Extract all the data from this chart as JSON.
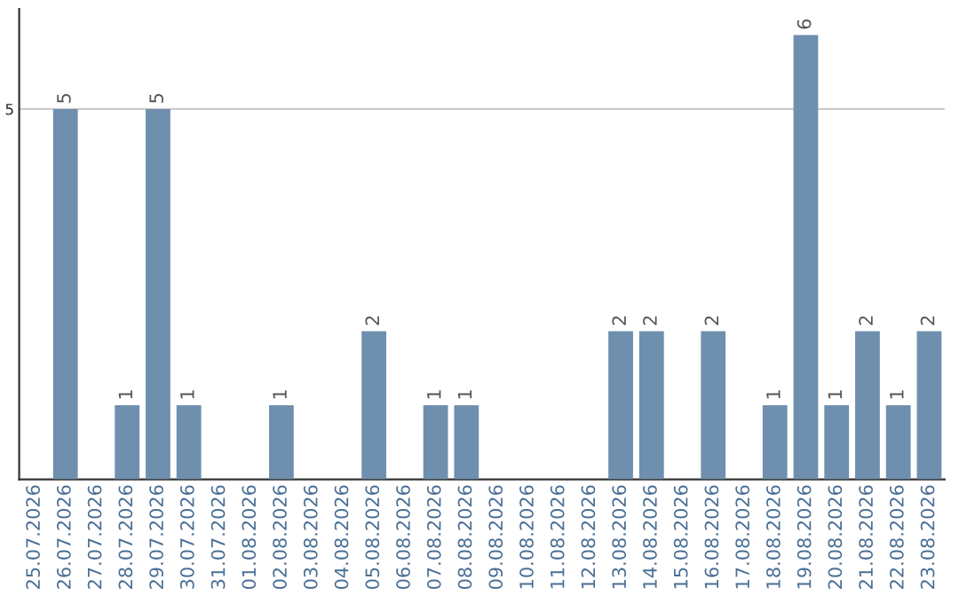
{
  "chart_data": {
    "type": "bar",
    "categories": [
      "25.07.2026",
      "26.07.2026",
      "27.07.2026",
      "28.07.2026",
      "29.07.2026",
      "30.07.2026",
      "31.07.2026",
      "01.08.2026",
      "02.08.2026",
      "03.08.2026",
      "04.08.2026",
      "05.08.2026",
      "06.08.2026",
      "07.08.2026",
      "08.08.2026",
      "09.08.2026",
      "10.08.2026",
      "11.08.2026",
      "12.08.2026",
      "13.08.2026",
      "14.08.2026",
      "15.08.2026",
      "16.08.2026",
      "17.08.2026",
      "18.08.2026",
      "19.08.2026",
      "20.08.2026",
      "21.08.2026",
      "22.08.2026",
      "23.08.2026"
    ],
    "values": [
      0,
      5,
      0,
      1,
      5,
      1,
      0,
      0,
      1,
      0,
      0,
      2,
      0,
      1,
      1,
      0,
      0,
      0,
      0,
      2,
      2,
      0,
      2,
      0,
      1,
      6,
      1,
      2,
      1,
      2
    ],
    "value_labels": [
      null,
      "5",
      null,
      "1",
      "5",
      "1",
      null,
      null,
      "1",
      null,
      null,
      "2",
      null,
      "1",
      "1",
      null,
      null,
      null,
      null,
      "2",
      "2",
      null,
      "2",
      null,
      "1",
      "6",
      "1",
      "2",
      "1",
      "2"
    ],
    "color": "#6e8fae",
    "ylim": [
      0,
      6.35
    ],
    "yticks": [
      5
    ],
    "grid": "y",
    "legend": false
  }
}
